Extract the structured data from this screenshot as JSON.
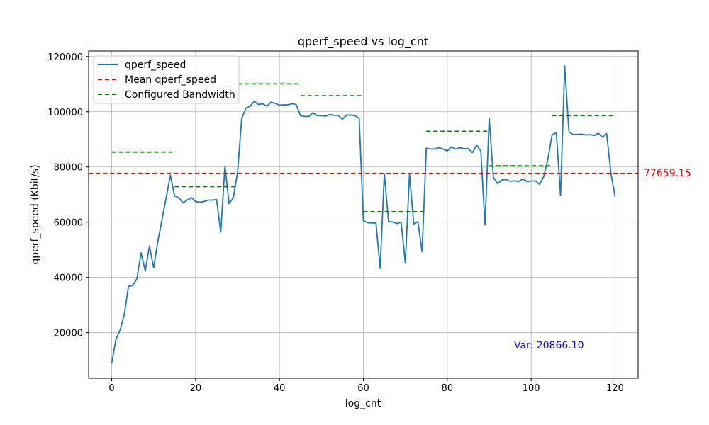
{
  "chart_data": {
    "type": "line",
    "title": "qperf_speed vs log_cnt",
    "xlabel": "log_cnt",
    "ylabel": "qperf_speed (Kbit/s)",
    "xlim": [
      -5.5,
      125.5
    ],
    "ylim": [
      3500,
      122000
    ],
    "x_ticks": [
      0,
      20,
      40,
      60,
      80,
      100,
      120
    ],
    "y_ticks": [
      20000,
      40000,
      60000,
      80000,
      100000,
      120000
    ],
    "grid": true,
    "legend_position": "upper-left",
    "series": [
      {
        "name": "qperf_speed",
        "color": "#1f77b4",
        "style": "solid",
        "x": [
          0,
          1,
          2,
          3,
          4,
          5,
          6,
          7,
          8,
          9,
          10,
          11,
          12,
          13,
          14,
          15,
          16,
          17,
          18,
          19,
          20,
          21,
          22,
          23,
          24,
          25,
          26,
          27,
          28,
          29,
          30,
          31,
          32,
          33,
          34,
          35,
          36,
          37,
          38,
          39,
          40,
          41,
          42,
          43,
          44,
          45,
          46,
          47,
          48,
          49,
          50,
          51,
          52,
          53,
          54,
          55,
          56,
          57,
          58,
          59,
          60,
          61,
          62,
          63,
          64,
          65,
          66,
          67,
          68,
          69,
          70,
          71,
          72,
          73,
          74,
          75,
          76,
          77,
          78,
          79,
          80,
          81,
          82,
          83,
          84,
          85,
          86,
          87,
          88,
          89,
          90,
          91,
          92,
          93,
          94,
          95,
          96,
          97,
          98,
          99,
          100,
          101,
          102,
          103,
          104,
          105,
          106,
          107,
          108,
          109,
          110,
          111,
          112,
          113,
          114,
          115,
          116,
          117,
          118,
          119,
          120
        ],
        "y": [
          9000,
          17500,
          21000,
          26500,
          36800,
          37000,
          39500,
          48900,
          42300,
          51400,
          43500,
          53000,
          61000,
          69000,
          77000,
          69500,
          68900,
          67000,
          68000,
          68900,
          67500,
          67200,
          67500,
          68000,
          68000,
          68200,
          56400,
          80300,
          66700,
          68900,
          78000,
          97600,
          101300,
          102000,
          103800,
          102600,
          102900,
          102000,
          103500,
          103000,
          102400,
          102500,
          102500,
          102900,
          102600,
          98600,
          98300,
          98300,
          99600,
          98600,
          98600,
          98400,
          99000,
          98700,
          98700,
          97300,
          98800,
          98800,
          98600,
          97600,
          60600,
          59800,
          59700,
          59700,
          43300,
          77600,
          60200,
          60100,
          59500,
          60000,
          45200,
          77600,
          59300,
          60200,
          49300,
          86800,
          86500,
          86500,
          87000,
          86500,
          85800,
          87300,
          86500,
          87000,
          86600,
          86700,
          85200,
          88000,
          85800,
          59000,
          97600,
          76200,
          74000,
          75300,
          75500,
          74800,
          75000,
          74700,
          75700,
          74700,
          74900,
          75000,
          73700,
          76500,
          83000,
          91700,
          92400,
          69700,
          116600,
          92700,
          91800,
          91800,
          91900,
          91600,
          91700,
          91400,
          92200,
          90800,
          92100,
          77900,
          69300
        ]
      },
      {
        "name": "Mean qperf_speed",
        "color": "#ff0000",
        "style": "dashed",
        "value": 77659.15
      },
      {
        "name": "Configured Bandwidth",
        "color": "#008000",
        "style": "dashed",
        "segments": [
          {
            "x_start": 0,
            "x_end": 14.5,
            "value": 85400
          },
          {
            "x_start": 15,
            "x_end": 29.5,
            "value": 72900
          },
          {
            "x_start": 30,
            "x_end": 44.5,
            "value": 110100
          },
          {
            "x_start": 45,
            "x_end": 59.5,
            "value": 105800
          },
          {
            "x_start": 60,
            "x_end": 74.5,
            "value": 63800
          },
          {
            "x_start": 75,
            "x_end": 89.5,
            "value": 92900
          },
          {
            "x_start": 90,
            "x_end": 104.5,
            "value": 80400
          },
          {
            "x_start": 105,
            "x_end": 119.5,
            "value": 98600
          }
        ]
      }
    ],
    "annotations": {
      "mean_label": "77659.15",
      "variance_label": "Var: 20866.10"
    }
  }
}
